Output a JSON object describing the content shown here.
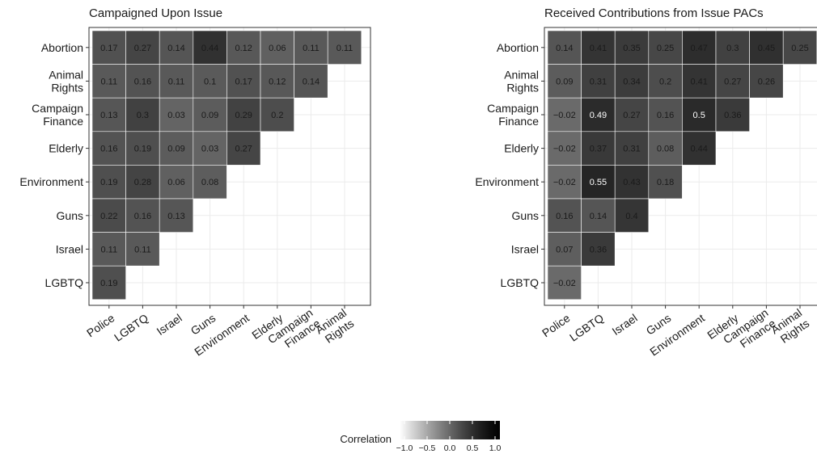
{
  "chart_data": [
    {
      "type": "heatmap",
      "title": "Campaigned Upon Issue",
      "rows": [
        "Abortion",
        "Animal Rights",
        "Campaign Finance",
        "Elderly",
        "Environment",
        "Guns",
        "Israel",
        "LGBTQ"
      ],
      "columns": [
        "Police",
        "LGBTQ",
        "Israel",
        "Guns",
        "Environment",
        "Elderly",
        "Campaign Finance",
        "Animal Rights"
      ],
      "values": [
        [
          0.17,
          0.27,
          0.14,
          0.44,
          0.12,
          0.06,
          0.11,
          0.11
        ],
        [
          0.11,
          0.16,
          0.11,
          0.1,
          0.17,
          0.12,
          0.14,
          null
        ],
        [
          0.13,
          0.3,
          0.03,
          0.09,
          0.29,
          0.2,
          null,
          null
        ],
        [
          0.16,
          0.19,
          0.09,
          0.03,
          0.27,
          null,
          null,
          null
        ],
        [
          0.19,
          0.28,
          0.06,
          0.08,
          null,
          null,
          null,
          null
        ],
        [
          0.22,
          0.16,
          0.13,
          null,
          null,
          null,
          null,
          null
        ],
        [
          0.11,
          0.11,
          null,
          null,
          null,
          null,
          null,
          null
        ],
        [
          0.19,
          null,
          null,
          null,
          null,
          null,
          null,
          null
        ]
      ],
      "grid": true
    },
    {
      "type": "heatmap",
      "title": "Received Contributions from Issue PACs",
      "rows": [
        "Abortion",
        "Animal Rights",
        "Campaign Finance",
        "Elderly",
        "Environment",
        "Guns",
        "Israel",
        "LGBTQ"
      ],
      "columns": [
        "Police",
        "LGBTQ",
        "Israel",
        "Guns",
        "Environment",
        "Elderly",
        "Campaign Finance",
        "Animal Rights"
      ],
      "values": [
        [
          0.14,
          0.41,
          0.35,
          0.25,
          0.47,
          0.3,
          0.45,
          0.25
        ],
        [
          0.09,
          0.31,
          0.34,
          0.2,
          0.41,
          0.27,
          0.26,
          null
        ],
        [
          -0.02,
          0.49,
          0.27,
          0.16,
          0.5,
          0.36,
          null,
          null
        ],
        [
          -0.02,
          0.37,
          0.31,
          0.08,
          0.44,
          null,
          null,
          null
        ],
        [
          -0.02,
          0.55,
          0.43,
          0.18,
          null,
          null,
          null,
          null
        ],
        [
          0.16,
          0.14,
          0.4,
          null,
          null,
          null,
          null,
          null
        ],
        [
          0.07,
          0.36,
          null,
          null,
          null,
          null,
          null,
          null
        ],
        [
          -0.02,
          null,
          null,
          null,
          null,
          null,
          null,
          null
        ]
      ],
      "grid": true
    }
  ],
  "legend": {
    "title": "Correlation",
    "ticks": [
      "−1.0",
      "−0.5",
      "0.0",
      "0.5",
      "1.0"
    ],
    "tick_values": [
      -1,
      -0.5,
      0,
      0.5,
      1
    ],
    "range": [
      -1,
      1
    ],
    "placement": "bottom-center",
    "colors": {
      "low": "#ffffff",
      "high": "#000000"
    }
  }
}
